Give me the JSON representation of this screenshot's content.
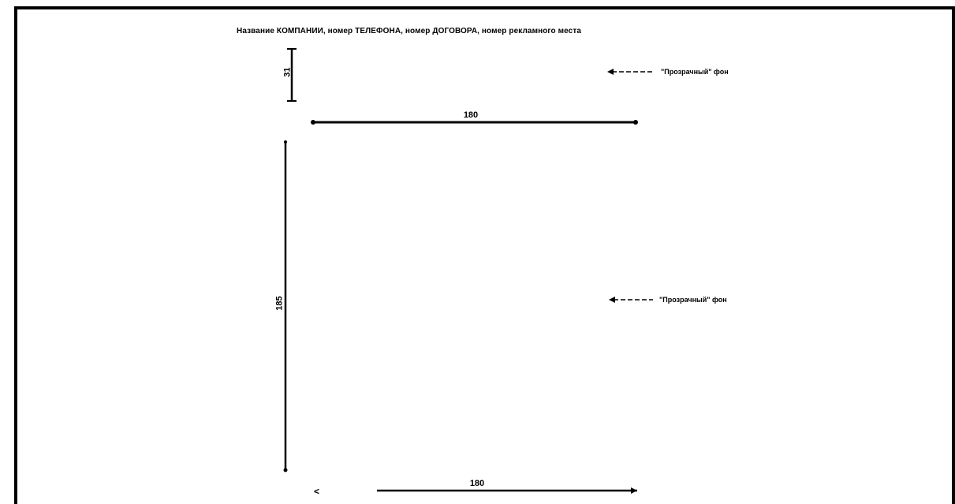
{
  "header": {
    "text": "Название КОМПАНИИ, номер ТЕЛЕФОНА, номер ДОГОВОРА, номер рекламного места"
  },
  "dimensions": {
    "top_height": "31",
    "top_width": "180",
    "main_height": "185",
    "bottom_width": "180"
  },
  "callouts": {
    "upper": "\"Прозрачный\" фон",
    "lower": "\"Прозрачный\" фон"
  },
  "bottom_marker": {
    "text": "<"
  }
}
